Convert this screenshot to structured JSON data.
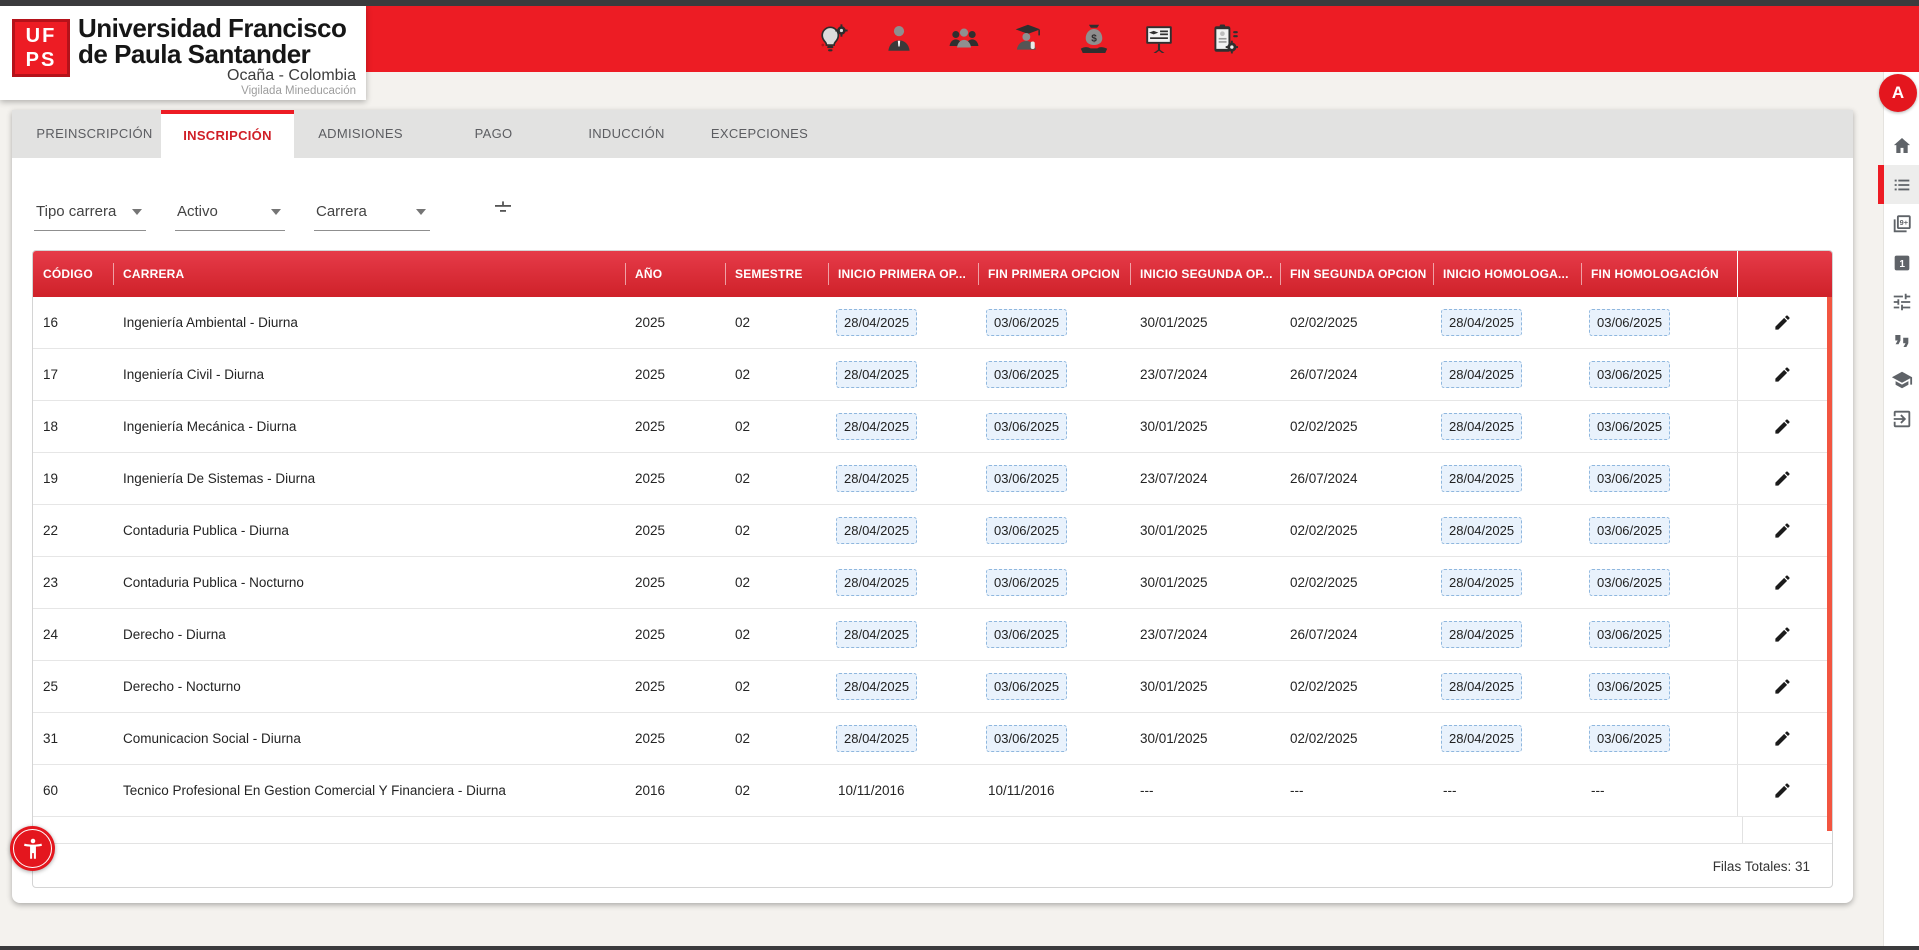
{
  "topbar": {
    "icons": [
      {
        "name": "innovation-icon"
      },
      {
        "name": "person-icon"
      },
      {
        "name": "group-icon"
      },
      {
        "name": "graduate-icon"
      },
      {
        "name": "funding-icon"
      },
      {
        "name": "training-icon"
      },
      {
        "name": "evaluation-icon"
      }
    ]
  },
  "logo": {
    "mark_top": "UF",
    "mark_bottom": "PS",
    "line1": "Universidad Francisco",
    "line2": "de Paula Santander",
    "line3": "Ocaña - Colombia",
    "line4": "Vigilada Mineducación"
  },
  "sidebar": {
    "avatar": "A",
    "items": [
      {
        "name": "home-icon"
      },
      {
        "name": "list-icon",
        "active": true
      },
      {
        "name": "filter-9plus-icon",
        "badge": "9+"
      },
      {
        "name": "filter-1-icon",
        "badge": "1"
      },
      {
        "name": "tune-icon"
      },
      {
        "name": "quotes-icon"
      },
      {
        "name": "school-icon"
      },
      {
        "name": "exit-icon"
      }
    ]
  },
  "tabs": [
    {
      "label": "PREINSCRIPCIÓN"
    },
    {
      "label": "INSCRIPCIÓN",
      "active": true
    },
    {
      "label": "ADMISIONES"
    },
    {
      "label": "PAGO"
    },
    {
      "label": "INDUCCIÓN"
    },
    {
      "label": "EXCEPCIONES"
    }
  ],
  "filters": {
    "selects": [
      "Tipo carrera",
      "Activo",
      "Carrera"
    ],
    "filter_icon": "filter-icon"
  },
  "table": {
    "columns": [
      "CÓDIGO",
      "CARRERA",
      "AÑO",
      "SEMESTRE",
      "INICIO PRIMERA OP...",
      "FIN PRIMERA OPCION",
      "INICIO SEGUNDA OP...",
      "FIN SEGUNDA OPCION",
      "INICIO HOMOLOGA...",
      "FIN HOMOLOGACIÓN",
      ""
    ],
    "rows": [
      {
        "codigo": "16",
        "carrera": "Ingeniería Ambiental - Diurna",
        "ano": "2025",
        "semestre": "02",
        "inicio_primera": "28/04/2025",
        "fin_primera": "03/06/2025",
        "inicio_segunda": "30/01/2025",
        "fin_segunda": "02/02/2025",
        "inicio_homologacion": "28/04/2025",
        "fin_homologacion": "03/06/2025",
        "chips": true
      },
      {
        "codigo": "17",
        "carrera": "Ingeniería Civil - Diurna",
        "ano": "2025",
        "semestre": "02",
        "inicio_primera": "28/04/2025",
        "fin_primera": "03/06/2025",
        "inicio_segunda": "23/07/2024",
        "fin_segunda": "26/07/2024",
        "inicio_homologacion": "28/04/2025",
        "fin_homologacion": "03/06/2025",
        "chips": true
      },
      {
        "codigo": "18",
        "carrera": "Ingeniería Mecánica - Diurna",
        "ano": "2025",
        "semestre": "02",
        "inicio_primera": "28/04/2025",
        "fin_primera": "03/06/2025",
        "inicio_segunda": "30/01/2025",
        "fin_segunda": "02/02/2025",
        "inicio_homologacion": "28/04/2025",
        "fin_homologacion": "03/06/2025",
        "chips": true
      },
      {
        "codigo": "19",
        "carrera": "Ingeniería De Sistemas - Diurna",
        "ano": "2025",
        "semestre": "02",
        "inicio_primera": "28/04/2025",
        "fin_primera": "03/06/2025",
        "inicio_segunda": "23/07/2024",
        "fin_segunda": "26/07/2024",
        "inicio_homologacion": "28/04/2025",
        "fin_homologacion": "03/06/2025",
        "chips": true
      },
      {
        "codigo": "22",
        "carrera": "Contaduria Publica - Diurna",
        "ano": "2025",
        "semestre": "02",
        "inicio_primera": "28/04/2025",
        "fin_primera": "03/06/2025",
        "inicio_segunda": "30/01/2025",
        "fin_segunda": "02/02/2025",
        "inicio_homologacion": "28/04/2025",
        "fin_homologacion": "03/06/2025",
        "chips": true
      },
      {
        "codigo": "23",
        "carrera": "Contaduria Publica - Nocturno",
        "ano": "2025",
        "semestre": "02",
        "inicio_primera": "28/04/2025",
        "fin_primera": "03/06/2025",
        "inicio_segunda": "30/01/2025",
        "fin_segunda": "02/02/2025",
        "inicio_homologacion": "28/04/2025",
        "fin_homologacion": "03/06/2025",
        "chips": true
      },
      {
        "codigo": "24",
        "carrera": "Derecho - Diurna",
        "ano": "2025",
        "semestre": "02",
        "inicio_primera": "28/04/2025",
        "fin_primera": "03/06/2025",
        "inicio_segunda": "23/07/2024",
        "fin_segunda": "26/07/2024",
        "inicio_homologacion": "28/04/2025",
        "fin_homologacion": "03/06/2025",
        "chips": true
      },
      {
        "codigo": "25",
        "carrera": "Derecho - Nocturno",
        "ano": "2025",
        "semestre": "02",
        "inicio_primera": "28/04/2025",
        "fin_primera": "03/06/2025",
        "inicio_segunda": "30/01/2025",
        "fin_segunda": "02/02/2025",
        "inicio_homologacion": "28/04/2025",
        "fin_homologacion": "03/06/2025",
        "chips": true
      },
      {
        "codigo": "31",
        "carrera": "Comunicacion Social - Diurna",
        "ano": "2025",
        "semestre": "02",
        "inicio_primera": "28/04/2025",
        "fin_primera": "03/06/2025",
        "inicio_segunda": "30/01/2025",
        "fin_segunda": "02/02/2025",
        "inicio_homologacion": "28/04/2025",
        "fin_homologacion": "03/06/2025",
        "chips": true
      },
      {
        "codigo": "60",
        "carrera": "Tecnico Profesional En Gestion Comercial Y Financiera - Diurna",
        "ano": "2016",
        "semestre": "02",
        "inicio_primera": "10/11/2016",
        "fin_primera": "10/11/2016",
        "inicio_segunda": "---",
        "fin_segunda": "---",
        "inicio_homologacion": "---",
        "fin_homologacion": "---",
        "chips": false
      }
    ],
    "footer": "Filas Totales: 31",
    "edit_action": "edit"
  },
  "colors": {
    "brand_red": "#ed1c24",
    "header_gradient_top": "#e63b49",
    "header_gradient_bottom": "#cf2129",
    "chip_bg": "#e9f2fc",
    "chip_border": "#8fb7de",
    "scrollbar": "#f25540",
    "active_tab_text": "#d01f27"
  }
}
